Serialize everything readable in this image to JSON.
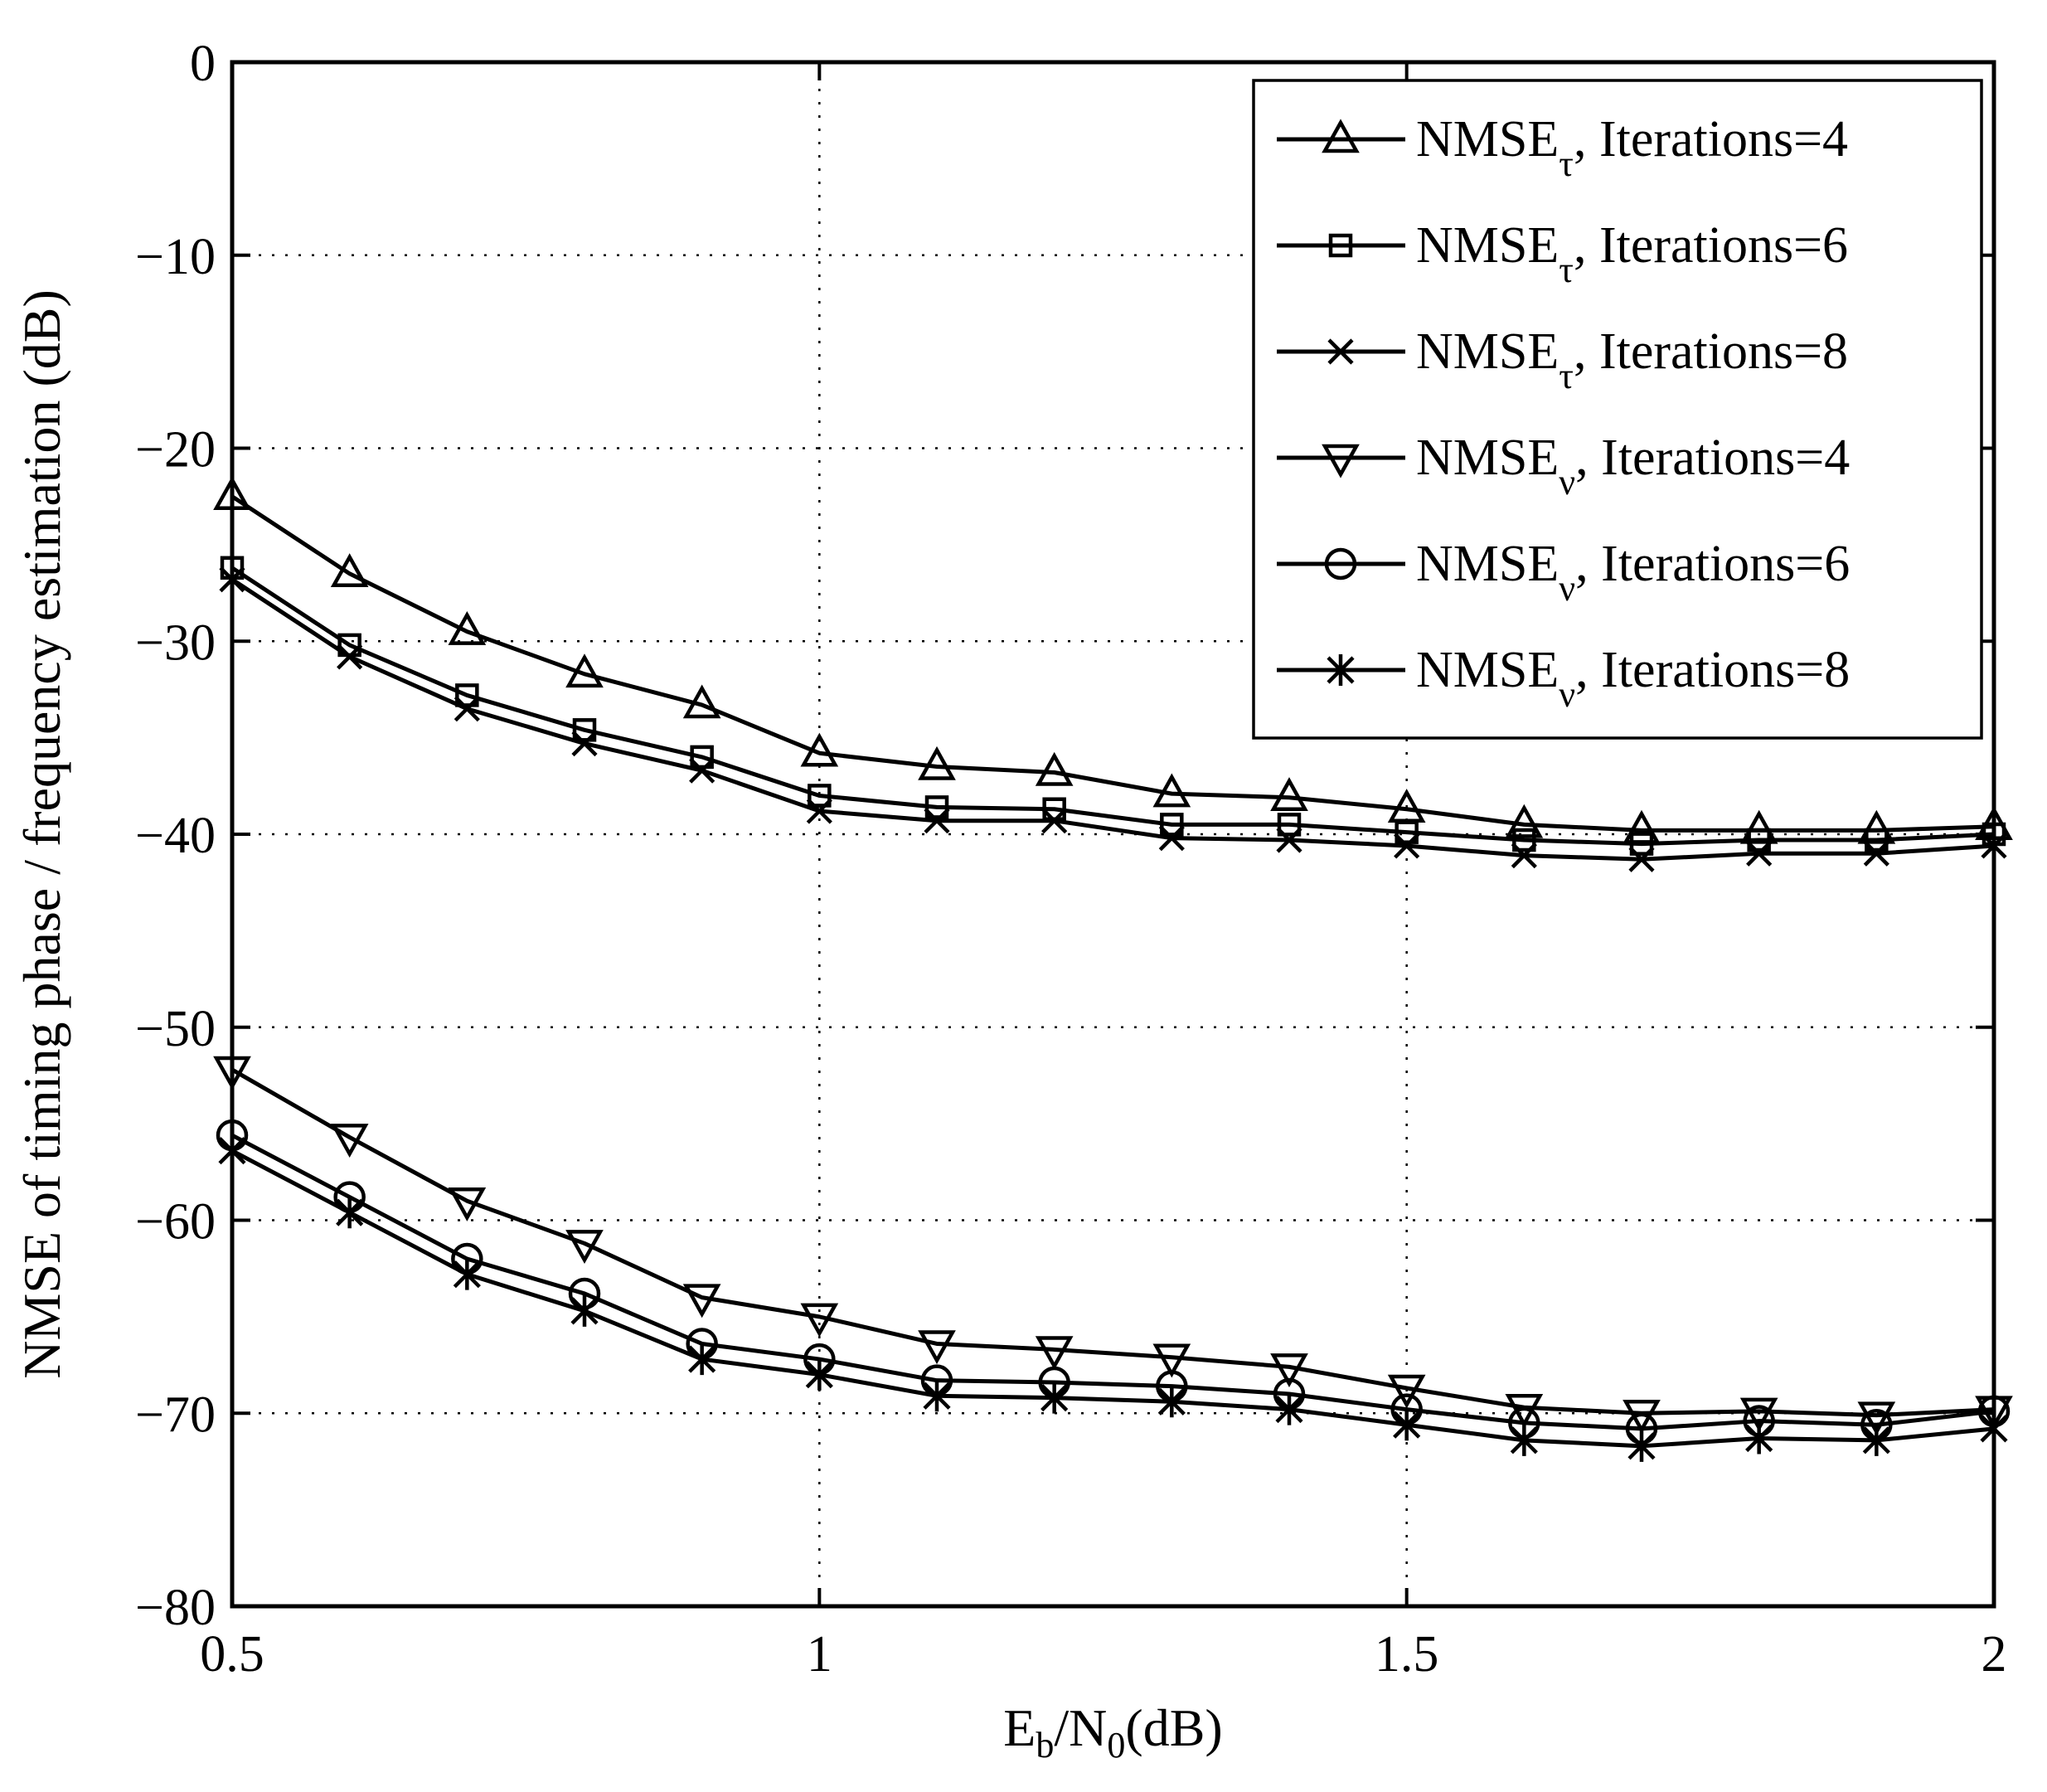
{
  "chart_data": {
    "type": "line",
    "title": "",
    "xlabel": {
      "main": "E",
      "sub": "b",
      "mid": "/N",
      "sub2": "0",
      "tail": "(dB)"
    },
    "ylabel": "NMSE of timing phase / frequency estimation (dB)",
    "xlim": [
      0.5,
      2
    ],
    "ylim": [
      -80,
      0
    ],
    "xticks": [
      0.5,
      1,
      1.5,
      2
    ],
    "xtick_labels": [
      "0.5",
      "1",
      "1.5",
      "2"
    ],
    "yticks": [
      0,
      -10,
      -20,
      -30,
      -40,
      -50,
      -60,
      -70,
      -80
    ],
    "ytick_labels": [
      "0",
      "−10",
      "−20",
      "−30",
      "−40",
      "−50",
      "−60",
      "−70",
      "−80"
    ],
    "grid": true,
    "legend_position": "top-right",
    "x": [
      0.5,
      0.6,
      0.7,
      0.8,
      0.9,
      1.0,
      1.1,
      1.2,
      1.3,
      1.4,
      1.5,
      1.6,
      1.7,
      1.8,
      1.9,
      2.0
    ],
    "series": [
      {
        "name": "NMSEτ, Iterations=4",
        "base": "NMSE",
        "sub": "τ",
        "suffix": ", Iterations=4",
        "marker": "triangle-up",
        "values": [
          -22.5,
          -26.5,
          -29.5,
          -31.7,
          -33.3,
          -35.8,
          -36.5,
          -36.8,
          -37.9,
          -38.1,
          -38.7,
          -39.5,
          -39.8,
          -39.8,
          -39.8,
          -39.6
        ]
      },
      {
        "name": "NMSEτ, Iterations=6",
        "base": "NMSE",
        "sub": "τ",
        "suffix": ", Iterations=6",
        "marker": "square",
        "values": [
          -26.2,
          -30.2,
          -32.8,
          -34.6,
          -36.0,
          -38.0,
          -38.6,
          -38.7,
          -39.5,
          -39.5,
          -39.9,
          -40.3,
          -40.5,
          -40.3,
          -40.3,
          -40.0
        ]
      },
      {
        "name": "NMSEτ, Iterations=8",
        "base": "NMSE",
        "sub": "τ",
        "suffix": ", Iterations=8",
        "marker": "x",
        "values": [
          -26.8,
          -30.8,
          -33.5,
          -35.3,
          -36.7,
          -38.8,
          -39.3,
          -39.3,
          -40.2,
          -40.3,
          -40.6,
          -41.1,
          -41.3,
          -41.0,
          -41.0,
          -40.6
        ]
      },
      {
        "name": "NMSEν, Iterations=4",
        "base": "NMSE",
        "sub": "ν",
        "suffix": ", Iterations=4",
        "marker": "triangle-down",
        "values": [
          -52.2,
          -55.7,
          -59.0,
          -61.2,
          -64.0,
          -65.0,
          -66.4,
          -66.7,
          -67.1,
          -67.6,
          -68.7,
          -69.7,
          -70.0,
          -69.9,
          -70.1,
          -69.8
        ]
      },
      {
        "name": "NMSEν, Iterations=6",
        "base": "NMSE",
        "sub": "ν",
        "suffix": ", Iterations=6",
        "marker": "circle",
        "values": [
          -55.6,
          -58.8,
          -62.0,
          -63.8,
          -66.4,
          -67.2,
          -68.3,
          -68.4,
          -68.6,
          -69.0,
          -69.8,
          -70.5,
          -70.8,
          -70.4,
          -70.6,
          -69.9
        ]
      },
      {
        "name": "NMSEν, Iterations=8",
        "base": "NMSE",
        "sub": "ν",
        "suffix": ", Iterations=8",
        "marker": "asterisk",
        "values": [
          -56.4,
          -59.6,
          -62.8,
          -64.7,
          -67.2,
          -68.0,
          -69.1,
          -69.2,
          -69.4,
          -69.8,
          -70.6,
          -71.4,
          -71.7,
          -71.3,
          -71.4,
          -70.8
        ]
      }
    ]
  }
}
